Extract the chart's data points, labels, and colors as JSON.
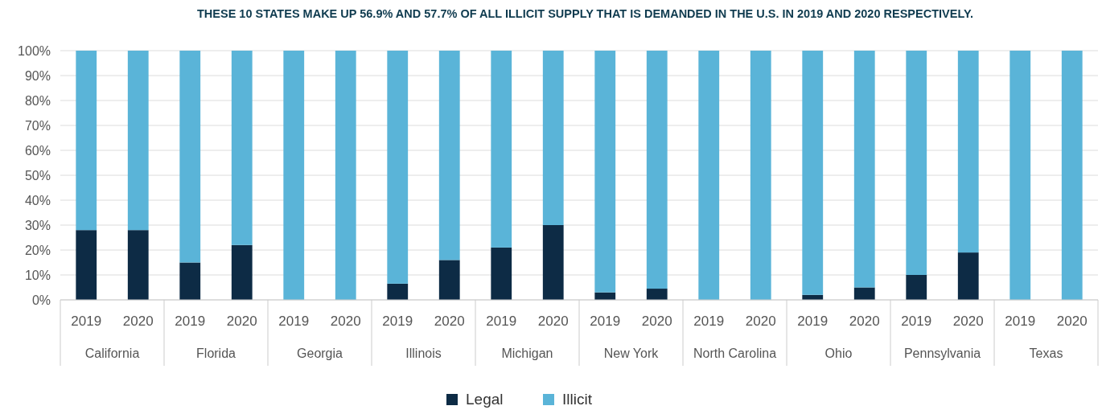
{
  "chart_data": {
    "type": "bar",
    "title": "THESE 10 STATES MAKE UP 56.9% AND 57.7% OF ALL ILLICIT SUPPLY THAT IS DEMANDED IN THE U.S. IN 2019 AND 2020 RESPECTIVELY.",
    "categories": [
      "2019",
      "2020",
      "2019",
      "2020",
      "2019",
      "2020",
      "2019",
      "2020",
      "2019",
      "2020",
      "2019",
      "2020",
      "2019",
      "2020",
      "2019",
      "2020",
      "2019",
      "2020",
      "2019",
      "2020"
    ],
    "annotations": [
      "California",
      "Florida",
      "Georgia",
      "Illinois",
      "Michigan",
      "New York",
      "North Carolina",
      "Ohio",
      "Pennsylvania",
      "Texas"
    ],
    "stacked": true,
    "series": [
      {
        "name": "Legal",
        "color": "#0d2b45",
        "values": [
          28,
          28,
          15,
          22,
          0,
          0,
          6.5,
          16,
          21,
          30,
          3,
          4.5,
          0,
          0,
          2,
          5,
          10,
          19,
          0,
          0
        ]
      },
      {
        "name": "Illicit",
        "color": "#5ab4d8",
        "values": [
          72,
          72,
          85,
          78,
          100,
          100,
          93.5,
          84,
          79,
          70,
          97,
          95.5,
          100,
          100,
          98,
          95,
          90,
          81,
          100,
          100
        ]
      }
    ],
    "ylim": [
      0,
      100
    ],
    "yticks": [
      {
        "value": 0,
        "label": "0%"
      },
      {
        "value": 10,
        "label": "10%"
      },
      {
        "value": 20,
        "label": "20%"
      },
      {
        "value": 30,
        "label": "30%"
      },
      {
        "value": 40,
        "label": "40%"
      },
      {
        "value": 50,
        "label": "50%"
      },
      {
        "value": 60,
        "label": "60%"
      },
      {
        "value": 70,
        "label": "70%"
      },
      {
        "value": 80,
        "label": "80%"
      },
      {
        "value": 90,
        "label": "90%"
      },
      {
        "value": 100,
        "label": "100%"
      }
    ],
    "grid": "y",
    "legend": "bottom"
  }
}
